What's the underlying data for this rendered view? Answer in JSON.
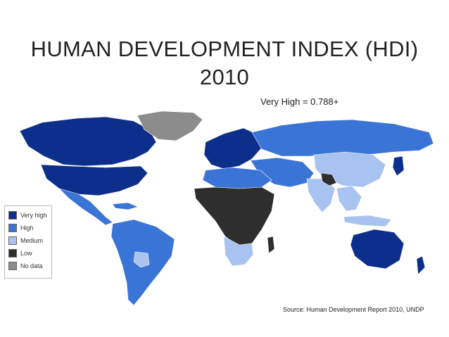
{
  "title": {
    "line1": "HUMAN DEVELOPMENT INDEX (HDI)",
    "line2": "2010"
  },
  "subtitle": "Very High = 0.788+",
  "source": "Source: Human Development Report 2010, UNDP",
  "legend": [
    {
      "label": "Very high",
      "color": "#0d2f8c"
    },
    {
      "label": "High",
      "color": "#3a74d6"
    },
    {
      "label": "Medium",
      "color": "#a9c3f0"
    },
    {
      "label": "Low",
      "color": "#2e2e2e"
    },
    {
      "label": "No data",
      "color": "#8c8c8c"
    }
  ],
  "colors": {
    "very_high": "#0d2f8c",
    "high": "#3a74d6",
    "medium": "#a9c3f0",
    "low": "#2e2e2e",
    "no_data": "#8c8c8c"
  }
}
